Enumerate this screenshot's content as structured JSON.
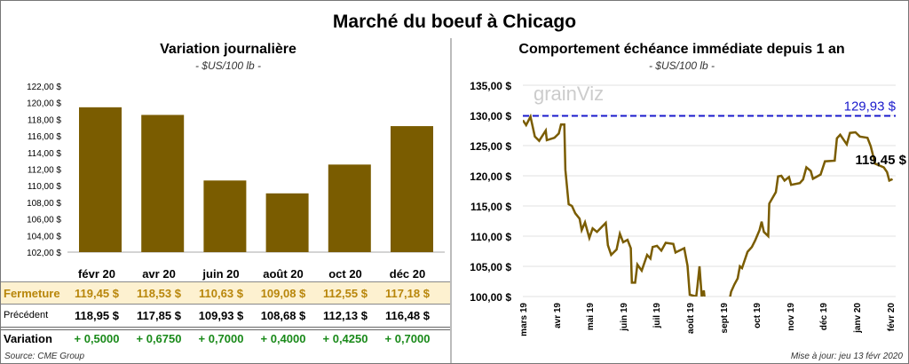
{
  "title": "Marché du boeuf à Chicago",
  "left": {
    "title": "Variation journalière",
    "subtitle": "- $US/100 lb -",
    "table": {
      "headers": [
        "févr 20",
        "avr 20",
        "juin 20",
        "août 20",
        "oct 20",
        "déc 20"
      ],
      "rows": [
        {
          "label": "Fermeture",
          "values": [
            "119,45  $",
            "118,53  $",
            "110,63  $",
            "109,08  $",
            "112,55  $",
            "117,18  $"
          ]
        },
        {
          "label": "Précédent",
          "values": [
            "118,95  $",
            "117,85  $",
            "109,93  $",
            "108,68  $",
            "112,13  $",
            "116,48  $"
          ]
        },
        {
          "label": "Variation",
          "values": [
            "+ 0,5000",
            "+ 0,6750",
            "+ 0,7000",
            "+ 0,4000",
            "+ 0,4250",
            "+ 0,7000"
          ]
        }
      ]
    },
    "source": "Source: CME Group"
  },
  "right": {
    "title": "Comportement  échéance immédiate depuis 1 an",
    "subtitle": "- $US/100 lb -",
    "update": "Mise à jour: jeu 13 févr 2020"
  },
  "colors": {
    "bar": "#7a5c00",
    "line": "#7a5c00",
    "ref_line": "#1a1acc",
    "close_row_bg": "#fdf1d0",
    "close_text": "#b8860b",
    "variation": "#1a8a1a"
  },
  "chart_data": [
    {
      "type": "bar",
      "categories": [
        "févr 20",
        "avr 20",
        "juin 20",
        "août 20",
        "oct 20",
        "déc 20"
      ],
      "values": [
        119.45,
        118.53,
        110.63,
        109.08,
        112.55,
        117.18
      ],
      "ylim": [
        102,
        122
      ],
      "yticks": [
        "102,00 $",
        "104,00 $",
        "106,00 $",
        "108,00 $",
        "110,00 $",
        "112,00 $",
        "114,00 $",
        "116,00 $",
        "118,00 $",
        "120,00 $",
        "122,00 $"
      ],
      "grid": false
    },
    {
      "type": "line",
      "ylim": [
        100,
        135
      ],
      "yticks": [
        "100,00 $",
        "105,00 $",
        "110,00 $",
        "115,00 $",
        "120,00 $",
        "125,00 $",
        "130,00 $",
        "135,00 $"
      ],
      "xticks": [
        "mars 19",
        "avr 19",
        "mai 19",
        "juin 19",
        "juil 19",
        "août 19",
        "sept 19",
        "oct 19",
        "nov 19",
        "déc 19",
        "janv 20",
        "févr 20"
      ],
      "grid": true,
      "reference": {
        "value": 129.93,
        "label": "129,93 $"
      },
      "last_label": "119,45 $",
      "series": [
        {
          "x": [
            "2019-03-01",
            "2019-03-04",
            "2019-03-08",
            "2019-03-12",
            "2019-03-16",
            "2019-03-22",
            "2019-03-23",
            "2019-03-30",
            "2019-04-03",
            "2019-04-05",
            "2019-04-08",
            "2019-04-09",
            "2019-04-12",
            "2019-04-15",
            "2019-04-18",
            "2019-04-22",
            "2019-04-24",
            "2019-04-27",
            "2019-05-01",
            "2019-05-04",
            "2019-05-08",
            "2019-05-16",
            "2019-05-18",
            "2019-05-21",
            "2019-05-26",
            "2019-05-29",
            "2019-06-01",
            "2019-06-05",
            "2019-06-08",
            "2019-06-09",
            "2019-06-12",
            "2019-06-14",
            "2019-06-18",
            "2019-06-23",
            "2019-06-26",
            "2019-06-28",
            "2019-07-02",
            "2019-07-06",
            "2019-07-10",
            "2019-07-17",
            "2019-07-19",
            "2019-07-27",
            "2019-07-30",
            "2019-08-01",
            "2019-08-07",
            "2019-08-08",
            "2019-08-10",
            "2019-08-12",
            "2019-08-14",
            "2019-08-15",
            "2019-08-25",
            "2019-09-06",
            "2019-09-08",
            "2019-09-11",
            "2019-09-14",
            "2019-09-16",
            "2019-09-18",
            "2019-09-23",
            "2019-09-27",
            "2019-09-30",
            "2019-10-04",
            "2019-10-06",
            "2019-10-08",
            "2019-10-12",
            "2019-10-13",
            "2019-10-19",
            "2019-10-21",
            "2019-10-24",
            "2019-10-27",
            "2019-10-31",
            "2019-11-02",
            "2019-11-10",
            "2019-11-13",
            "2019-11-16",
            "2019-11-20",
            "2019-11-22",
            "2019-11-29",
            "2019-12-03",
            "2019-12-12",
            "2019-12-14",
            "2019-12-17",
            "2019-12-23",
            "2019-12-26",
            "2019-12-31",
            "2020-01-04",
            "2020-01-11",
            "2020-01-14",
            "2020-01-18",
            "2020-01-26",
            "2020-01-29",
            "2020-01-31",
            "2020-02-03"
          ],
          "y": [
            129.2,
            128.4,
            129.8,
            126.5,
            125.8,
            127.5,
            125.9,
            126.3,
            127,
            128.5,
            128.5,
            121,
            115.3,
            115,
            113.8,
            112.9,
            111,
            112.3,
            109.7,
            111.3,
            110.7,
            112.2,
            108.5,
            106.9,
            107.8,
            110.4,
            109,
            109.4,
            108,
            102.3,
            102.3,
            105.3,
            104.3,
            106.9,
            106.3,
            108.2,
            108.4,
            107.6,
            108.9,
            108.7,
            107.3,
            108,
            105.1,
            100.3,
            100,
            101.6,
            105,
            100,
            101,
            99,
            95,
            99,
            100.8,
            102,
            103,
            105,
            104.7,
            107.4,
            108.2,
            109.3,
            111,
            112.4,
            110.7,
            110,
            115.4,
            117.3,
            119.9,
            120,
            119.2,
            119.8,
            118.5,
            118.8,
            119.4,
            121.4,
            120.8,
            119.5,
            120.2,
            122.4,
            122.5,
            126.2,
            126.8,
            125.2,
            127.1,
            127.2,
            126.5,
            126.3,
            124.9,
            122,
            121.4,
            120.6,
            119.2,
            119.45
          ]
        }
      ]
    }
  ]
}
